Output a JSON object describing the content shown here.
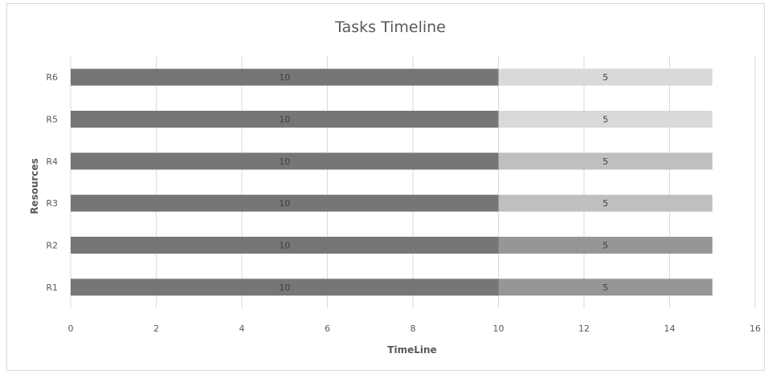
{
  "chart_data": {
    "type": "bar",
    "orientation": "horizontal",
    "stacked": true,
    "title": "Tasks Timeline",
    "xlabel": "TimeLine",
    "ylabel": "Resources",
    "xlim": [
      0,
      16
    ],
    "x_ticks": [
      0,
      2,
      4,
      6,
      8,
      10,
      12,
      14,
      16
    ],
    "categories": [
      "R1",
      "R2",
      "R3",
      "R4",
      "R5",
      "R6"
    ],
    "grid": true,
    "legend": "none",
    "series": [
      {
        "values": [
          10,
          10,
          10,
          10,
          10,
          10
        ],
        "colors": [
          "#767676",
          "#767676",
          "#767676",
          "#767676",
          "#767676",
          "#767676"
        ]
      },
      {
        "values": [
          5,
          5,
          5,
          5,
          5,
          5
        ],
        "colors": [
          "#969696",
          "#969696",
          "#bfbfbf",
          "#bfbfbf",
          "#d9d9d9",
          "#d9d9d9"
        ]
      }
    ],
    "data_labels": true
  }
}
